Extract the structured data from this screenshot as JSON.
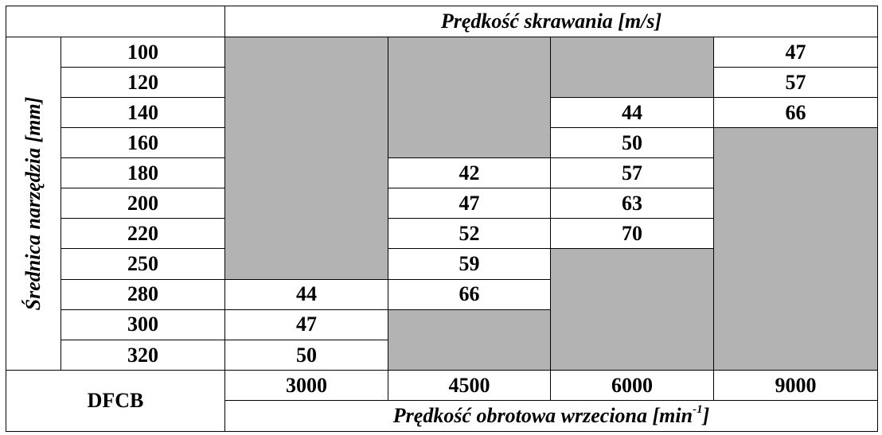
{
  "table": {
    "cutting_speed_header": "Prędkość skrawania [m/s]",
    "tool_diameter_label": "Średnica narzędzia [mm]",
    "corner_label": "DFCB",
    "spindle_speed_label": "Prędkość obrotowa wrzeciona [min",
    "spindle_speed_label_sup": "-1",
    "spindle_speed_label_end": "]",
    "rpm": [
      "3000",
      "4500",
      "6000",
      "9000"
    ],
    "diameters": [
      "100",
      "120",
      "140",
      "160",
      "180",
      "200",
      "220",
      "250",
      "280",
      "300",
      "320"
    ],
    "values": [
      [
        null,
        null,
        null,
        "47"
      ],
      [
        null,
        null,
        null,
        "57"
      ],
      [
        null,
        null,
        "44",
        "66"
      ],
      [
        null,
        null,
        "50",
        null
      ],
      [
        null,
        "42",
        "57",
        null
      ],
      [
        null,
        "47",
        "63",
        null
      ],
      [
        null,
        "52",
        "70",
        null
      ],
      [
        null,
        "59",
        null,
        null
      ],
      [
        "44",
        "66",
        null,
        null
      ],
      [
        "47",
        null,
        null,
        null
      ],
      [
        "50",
        null,
        null,
        null
      ]
    ]
  }
}
